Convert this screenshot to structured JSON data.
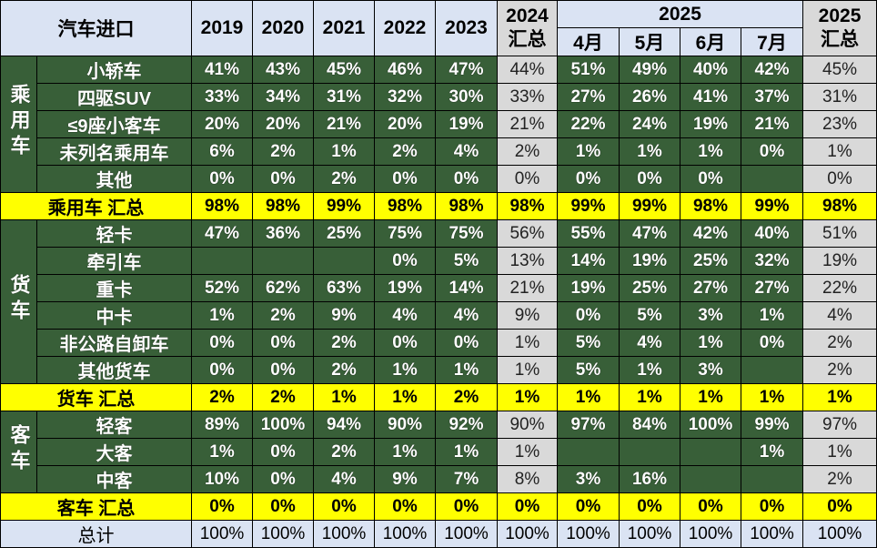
{
  "header": {
    "title": "汽车进口",
    "years": [
      "2019",
      "2020",
      "2021",
      "2022",
      "2023"
    ],
    "summary_2024": {
      "year": "2024",
      "label": "汇总"
    },
    "year_2025": "2025",
    "months": [
      "4月",
      "5月",
      "6月",
      "7月"
    ],
    "summary_2025": {
      "year": "2025",
      "label": "汇总"
    }
  },
  "groups": [
    {
      "label": "乘用车",
      "rows": [
        {
          "label": "小轿车",
          "values": [
            "41%",
            "43%",
            "45%",
            "46%",
            "47%",
            "44%",
            "51%",
            "49%",
            "40%",
            "42%",
            "45%"
          ]
        },
        {
          "label": "四驱SUV",
          "values": [
            "33%",
            "34%",
            "31%",
            "32%",
            "30%",
            "33%",
            "27%",
            "26%",
            "41%",
            "37%",
            "31%"
          ]
        },
        {
          "label": "≤9座小客车",
          "values": [
            "20%",
            "20%",
            "21%",
            "20%",
            "19%",
            "21%",
            "22%",
            "24%",
            "19%",
            "21%",
            "23%"
          ]
        },
        {
          "label": "未列名乘用车",
          "values": [
            "6%",
            "2%",
            "1%",
            "2%",
            "4%",
            "2%",
            "1%",
            "1%",
            "1%",
            "0%",
            "1%"
          ]
        },
        {
          "label": "其他",
          "values": [
            "0%",
            "0%",
            "2%",
            "0%",
            "0%",
            "0%",
            "0%",
            "0%",
            "0%",
            "",
            "0%"
          ]
        }
      ],
      "summary": {
        "label": "乘用车 汇总",
        "values": [
          "98%",
          "98%",
          "99%",
          "98%",
          "98%",
          "98%",
          "99%",
          "99%",
          "98%",
          "99%",
          "98%"
        ]
      }
    },
    {
      "label": "货车",
      "rows": [
        {
          "label": "轻卡",
          "values": [
            "47%",
            "36%",
            "25%",
            "75%",
            "75%",
            "56%",
            "55%",
            "47%",
            "42%",
            "40%",
            "51%"
          ]
        },
        {
          "label": "牵引车",
          "values": [
            "",
            "",
            "",
            "0%",
            "5%",
            "13%",
            "14%",
            "19%",
            "25%",
            "32%",
            "19%"
          ]
        },
        {
          "label": "重卡",
          "values": [
            "52%",
            "62%",
            "63%",
            "19%",
            "14%",
            "21%",
            "19%",
            "25%",
            "27%",
            "27%",
            "22%"
          ]
        },
        {
          "label": "中卡",
          "values": [
            "1%",
            "2%",
            "9%",
            "4%",
            "4%",
            "9%",
            "0%",
            "5%",
            "3%",
            "1%",
            "4%"
          ]
        },
        {
          "label": "非公路自卸车",
          "values": [
            "0%",
            "0%",
            "2%",
            "0%",
            "0%",
            "1%",
            "5%",
            "4%",
            "1%",
            "0%",
            "2%"
          ]
        },
        {
          "label": "其他货车",
          "values": [
            "0%",
            "0%",
            "2%",
            "1%",
            "1%",
            "1%",
            "5%",
            "1%",
            "3%",
            "",
            "2%"
          ]
        }
      ],
      "summary": {
        "label": "货车 汇总",
        "values": [
          "2%",
          "2%",
          "1%",
          "1%",
          "2%",
          "1%",
          "1%",
          "1%",
          "1%",
          "1%",
          "1%"
        ]
      }
    },
    {
      "label": "客车",
      "rows": [
        {
          "label": "轻客",
          "values": [
            "89%",
            "100%",
            "94%",
            "90%",
            "92%",
            "90%",
            "97%",
            "84%",
            "100%",
            "99%",
            "97%"
          ]
        },
        {
          "label": "大客",
          "values": [
            "1%",
            "0%",
            "2%",
            "1%",
            "1%",
            "1%",
            "",
            "",
            "",
            "1%",
            "1%"
          ]
        },
        {
          "label": "中客",
          "values": [
            "10%",
            "0%",
            "4%",
            "9%",
            "7%",
            "8%",
            "3%",
            "16%",
            "",
            "",
            "2%"
          ]
        }
      ],
      "summary": {
        "label": "客车 汇总",
        "values": [
          "0%",
          "0%",
          "0%",
          "0%",
          "0%",
          "0%",
          "0%",
          "0%",
          "0%",
          "0%",
          "0%"
        ]
      }
    }
  ],
  "total": {
    "label": "总计",
    "values": [
      "100%",
      "100%",
      "100%",
      "100%",
      "100%",
      "100%",
      "100%",
      "100%",
      "100%",
      "100%",
      "100%"
    ]
  },
  "colors": {
    "header_bg": "#dae3f3",
    "green_bg": "#385f38",
    "gray_bg": "#d9d9d9",
    "yellow_bg": "#ffff00"
  }
}
